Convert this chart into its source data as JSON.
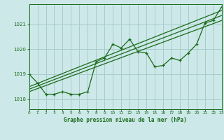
{
  "title": "Graphe pression niveau de la mer (hPa)",
  "bg_color": "#cce8e8",
  "plot_bg_color": "#cce8e8",
  "grid_color": "#aacccc",
  "line_color": "#1a6b1a",
  "text_color": "#1a6b1a",
  "xlim": [
    0,
    23
  ],
  "ylim": [
    1017.6,
    1021.8
  ],
  "yticks": [
    1018,
    1019,
    1020,
    1021
  ],
  "xticks": [
    0,
    1,
    2,
    3,
    4,
    5,
    6,
    7,
    8,
    9,
    10,
    11,
    12,
    13,
    14,
    15,
    16,
    17,
    18,
    19,
    20,
    21,
    22,
    23
  ],
  "main_x": [
    0,
    1,
    2,
    3,
    4,
    5,
    6,
    7,
    8,
    9,
    10,
    11,
    12,
    13,
    14,
    15,
    16,
    17,
    18,
    19,
    20,
    21,
    22,
    23
  ],
  "main_y": [
    1019.0,
    1018.65,
    1018.2,
    1018.2,
    1018.3,
    1018.2,
    1018.2,
    1018.3,
    1019.5,
    1019.65,
    1020.2,
    1020.05,
    1020.4,
    1019.9,
    1019.85,
    1019.3,
    1019.35,
    1019.65,
    1019.55,
    1019.85,
    1020.2,
    1021.05,
    1021.15,
    1021.7
  ],
  "line1_x": [
    0,
    23
  ],
  "line1_y": [
    1018.5,
    1021.55
  ],
  "line2_x": [
    0,
    23
  ],
  "line2_y": [
    1018.4,
    1021.35
  ],
  "line3_x": [
    0,
    23
  ],
  "line3_y": [
    1018.3,
    1021.15
  ]
}
